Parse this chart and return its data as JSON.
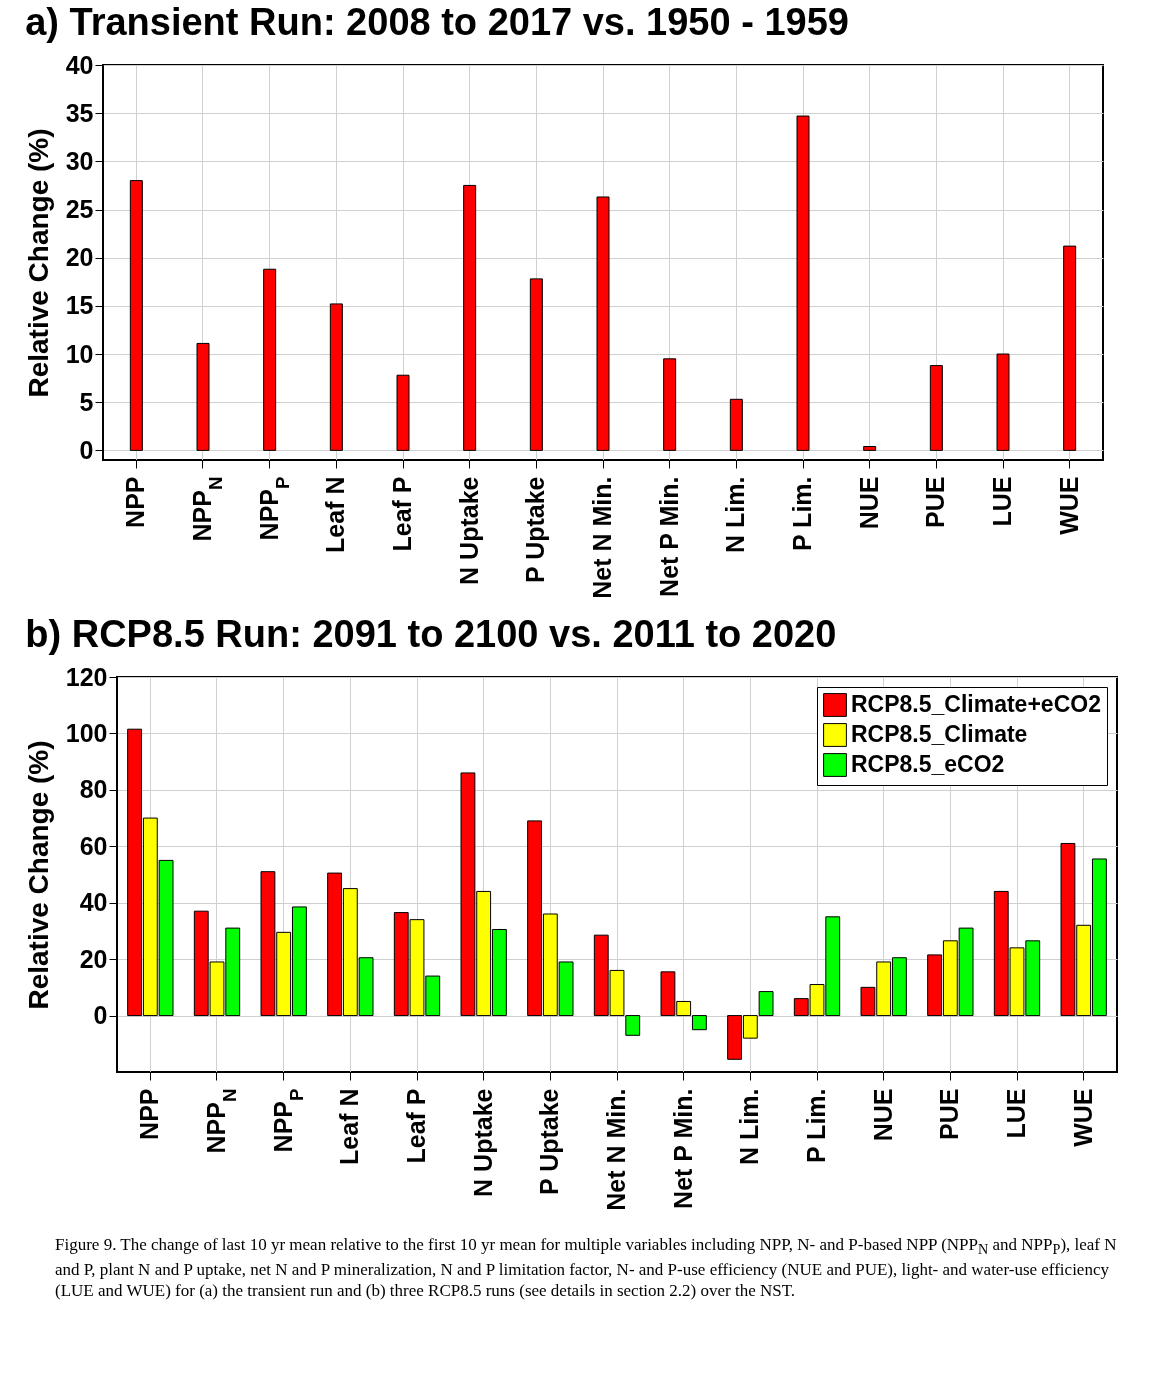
{
  "chart_data": [
    {
      "type": "bar",
      "title": "a) Transient Run: 2008 to 2017 vs. 1950 - 1959",
      "ylabel": "Relative Change (%)",
      "categories": [
        "NPP",
        "NPP$_{N}$",
        "NPP$_{P}$",
        "Leaf N",
        "Leaf P",
        "N Uptake",
        "P Uptake",
        "Net N Min.",
        "Net P Min.",
        "N Lim.",
        "P Lim.",
        "NUE",
        "PUE",
        "LUE",
        "WUE"
      ],
      "values": [
        28,
        11.1,
        18.8,
        15.2,
        7.8,
        27.5,
        17.8,
        26.3,
        9.5,
        5.3,
        34.7,
        0.4,
        8.8,
        10,
        21.2
      ],
      "color": "#ff0000",
      "ylim": [
        -1,
        40
      ],
      "yticks": [
        0,
        5,
        10,
        15,
        20,
        25,
        30,
        35,
        40
      ],
      "grid": true
    },
    {
      "type": "bar",
      "title": "b) RCP8.5 Run: 2091 to 2100 vs. 2011 to 2020",
      "ylabel": "Relative Change (%)",
      "categories": [
        "NPP",
        "NPP$_{N}$",
        "NPP$_{P}$",
        "Leaf N",
        "Leaf P",
        "N Uptake",
        "P Uptake",
        "Net N Min.",
        "Net P Min.",
        "N Lim.",
        "P Lim.",
        "NUE",
        "PUE",
        "LUE",
        "WUE"
      ],
      "series": [
        {
          "name": "RCP8.5_Climate+eCO2",
          "color": "#ff0000",
          "values": [
            101.5,
            37,
            51,
            50.5,
            36.5,
            86,
            69,
            28.5,
            15.5,
            -15.5,
            6,
            10,
            21.5,
            44,
            61
          ]
        },
        {
          "name": "RCP8.5_Climate",
          "color": "#ffff00",
          "values": [
            70,
            19,
            29.5,
            45,
            34,
            44,
            36,
            16,
            5,
            -8,
            11,
            19,
            26.5,
            24,
            32
          ]
        },
        {
          "name": "RCP8.5_eCO2",
          "color": "#00ff00",
          "values": [
            55,
            31,
            38.5,
            20.5,
            14,
            30.5,
            19,
            -7,
            -5,
            8.5,
            35,
            20.5,
            31,
            26.5,
            55.5
          ]
        }
      ],
      "ylim": [
        -20,
        120
      ],
      "yticks": [
        0,
        20,
        40,
        60,
        80,
        100,
        120
      ],
      "grid": true,
      "legend": "top right",
      "annotations": [
        "Figure 9. The change of last 10 yr mean relative to the first 10 yr mean for multiple variables including NPP, N- and P-based NPP (NPP$_{N}$ and NPP$_{P}$), leaf N and P, plant N and P uptake, net N and P mineralization, N and P limitation factor, N- and P-use efficiency (NUE and PUE), light- and water-use efficiency (LUE and WUE) for (a) the transient run and (b) three RCP8.5 runs (see details in section 2.2) over the NST."
      ]
    }
  ]
}
